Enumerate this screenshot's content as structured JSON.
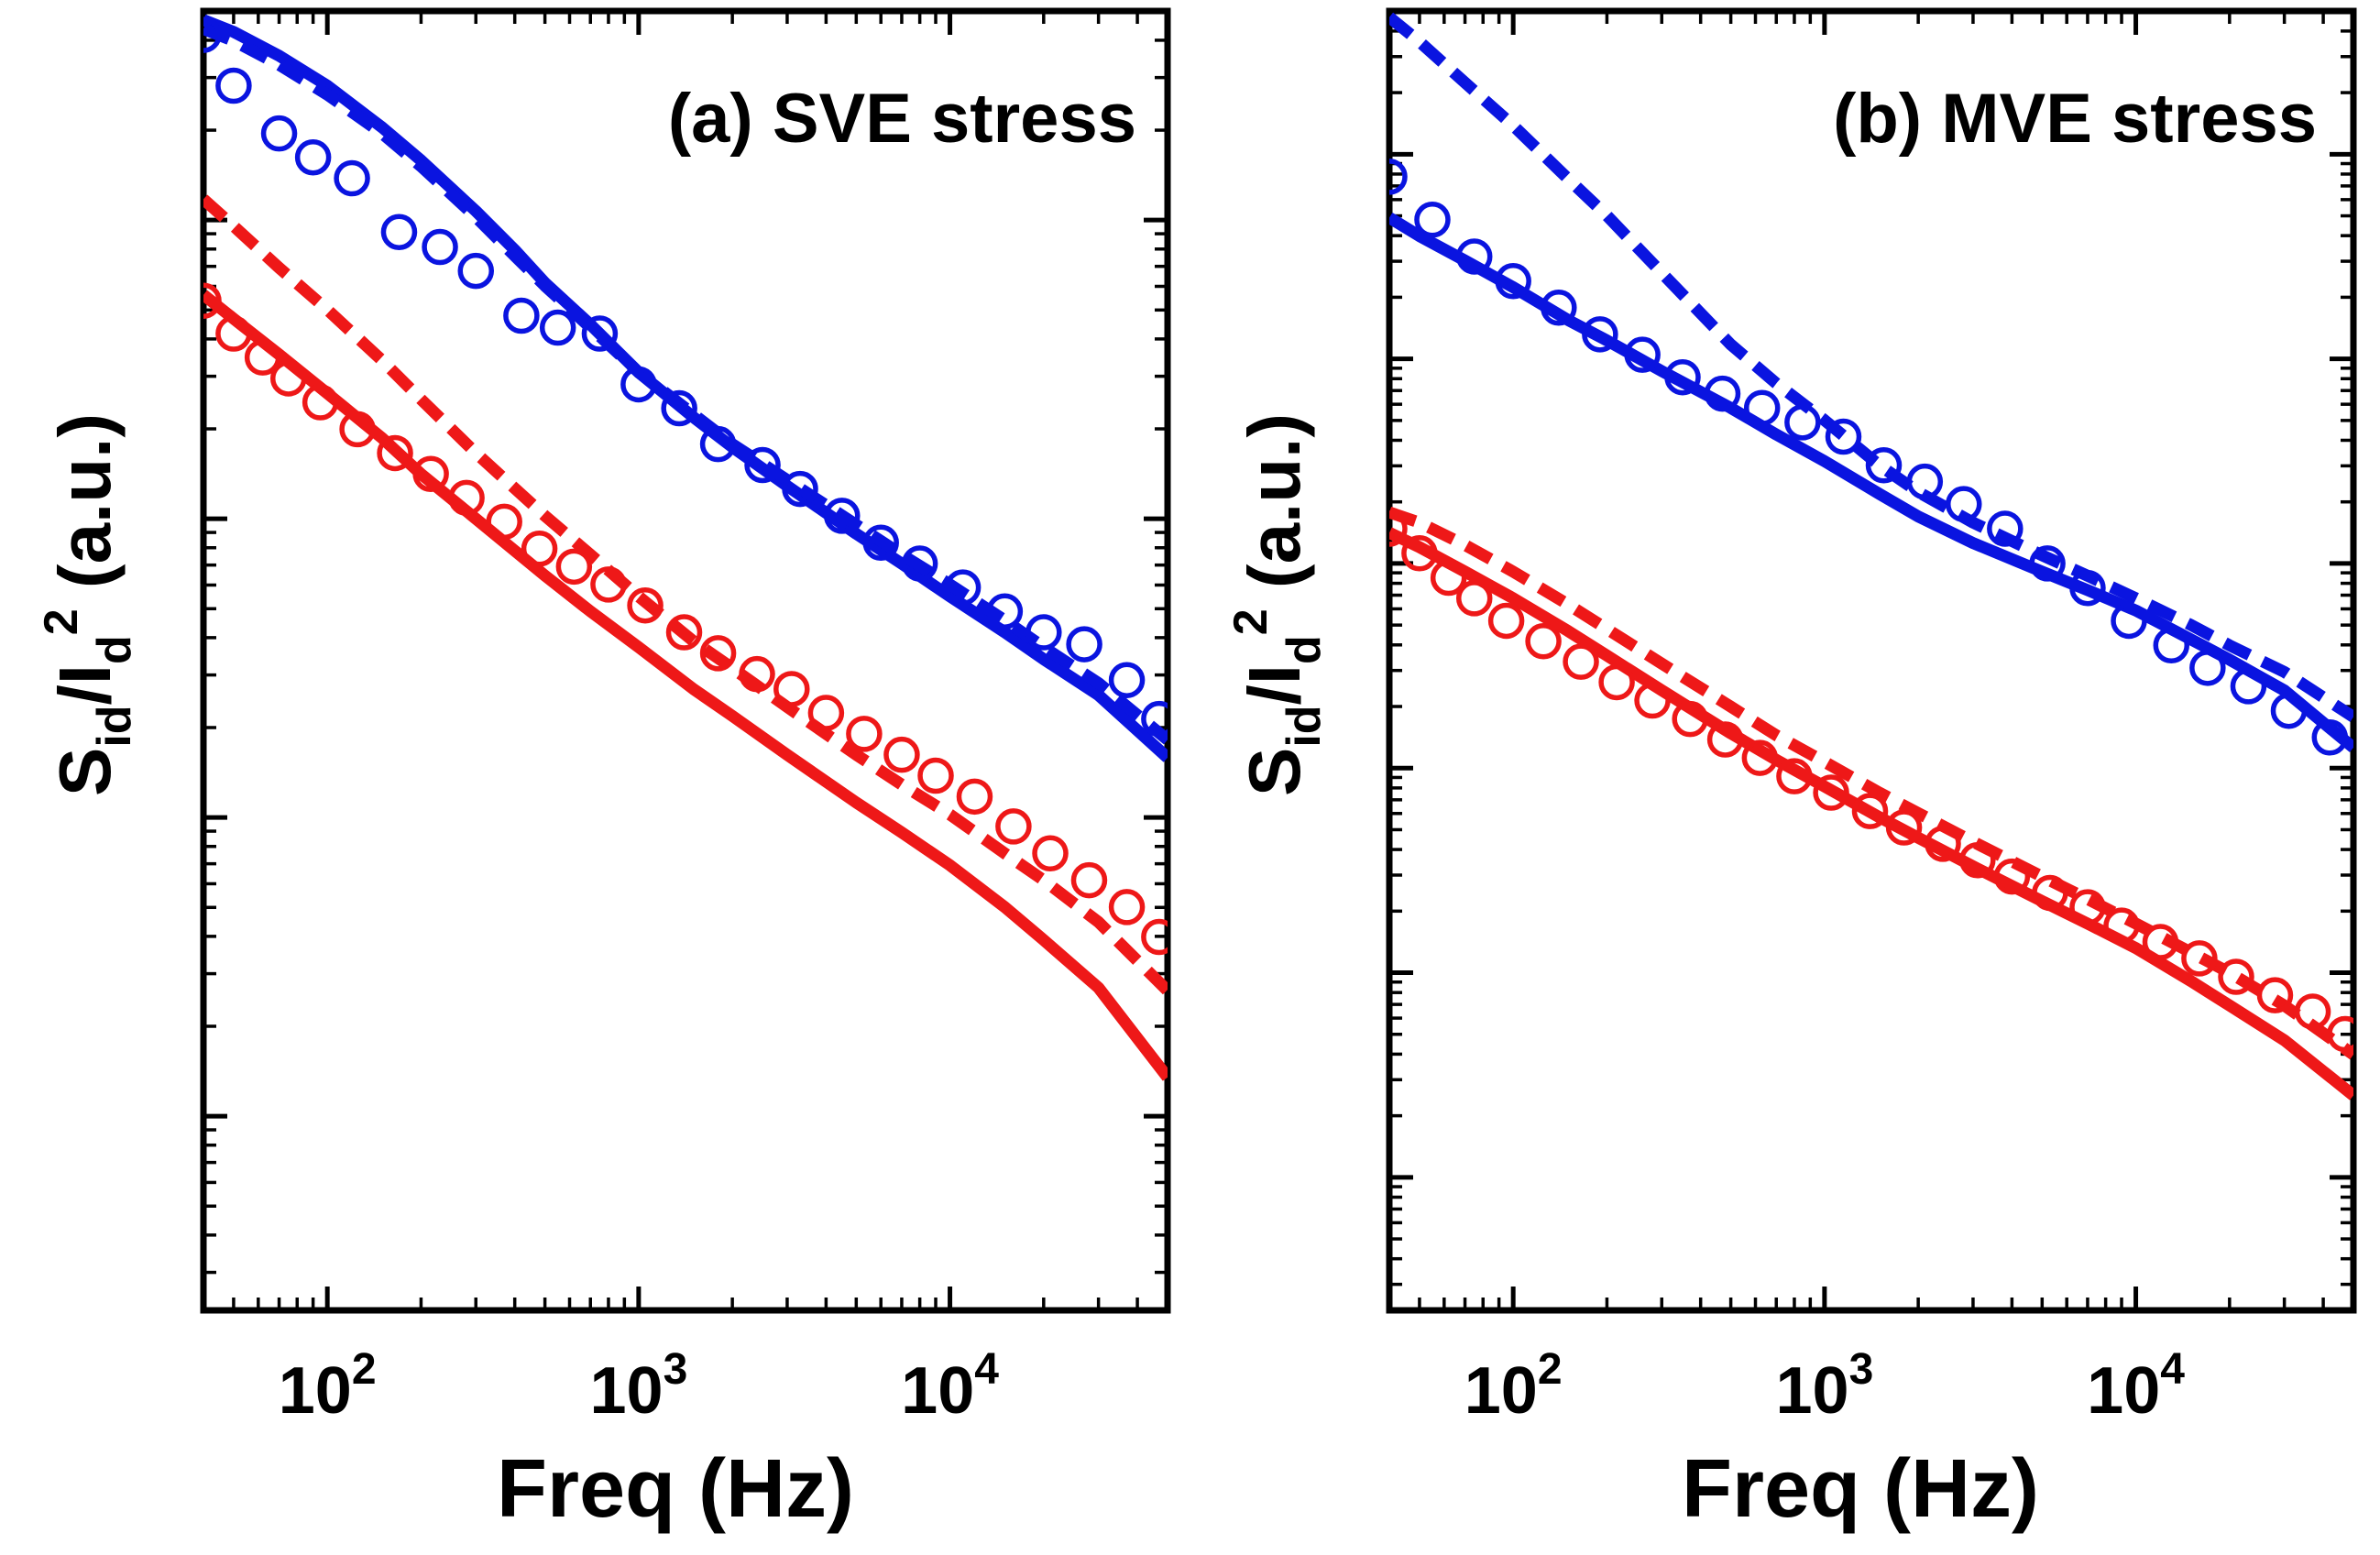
{
  "chart_data": [
    {
      "type": "line",
      "title": "(a) SVE stress",
      "xlabel": "Freq (Hz)",
      "ylabel": {
        "base": "S",
        "base_sub": "id",
        "sep": "/I",
        "sep_sub": "d",
        "sup": "2",
        "tail": " (a.u.)"
      },
      "x_scale": "log",
      "y_scale": "log",
      "xlim": [
        40,
        50000
      ],
      "ylim": [
        -11.65,
        -7.3
      ],
      "y_units": "log10 of arbitrary units (no tick labels shown)",
      "x_ticks": [
        {
          "value": 100,
          "base": "10",
          "exp": "2"
        },
        {
          "value": 1000,
          "base": "10",
          "exp": "3"
        },
        {
          "value": 10000,
          "base": "10",
          "exp": "4"
        }
      ],
      "series": [
        {
          "name": "blue-fit-solid",
          "color": "#0a14e0",
          "style": "solid",
          "x": [
            40,
            50,
            70,
            100,
            150,
            200,
            300,
            400,
            500,
            700,
            1000,
            1500,
            2000,
            3000,
            5000,
            7000,
            10000,
            15000,
            20000,
            30000,
            50000
          ],
          "y": [
            -7.33,
            -7.37,
            -7.45,
            -7.55,
            -7.69,
            -7.8,
            -7.97,
            -8.1,
            -8.21,
            -8.35,
            -8.51,
            -8.66,
            -8.76,
            -8.89,
            -9.05,
            -9.15,
            -9.26,
            -9.38,
            -9.47,
            -9.59,
            -9.8
          ]
        },
        {
          "name": "blue-fit-dashed",
          "color": "#0a14e0",
          "style": "dashed",
          "x": [
            40,
            50,
            70,
            100,
            150,
            200,
            300,
            400,
            500,
            700,
            1000,
            1500,
            2000,
            3000,
            5000,
            7000,
            10000,
            15000,
            20000,
            30000,
            50000
          ],
          "y": [
            -7.36,
            -7.4,
            -7.48,
            -7.58,
            -7.71,
            -7.82,
            -7.99,
            -8.12,
            -8.22,
            -8.36,
            -8.51,
            -8.65,
            -8.75,
            -8.87,
            -9.02,
            -9.12,
            -9.22,
            -9.34,
            -9.43,
            -9.55,
            -9.74
          ]
        },
        {
          "name": "blue-measured",
          "color": "#0a14e0",
          "style": "markers",
          "x": [
            40,
            50,
            70,
            90,
            120,
            170,
            230,
            300,
            420,
            550,
            750,
            1000,
            1350,
            1800,
            2500,
            3300,
            4500,
            6000,
            8000,
            11000,
            15000,
            20000,
            27000,
            37000,
            47000
          ],
          "y": [
            -7.38,
            -7.55,
            -7.71,
            -7.79,
            -7.86,
            -8.04,
            -8.09,
            -8.17,
            -8.32,
            -8.36,
            -8.38,
            -8.55,
            -8.63,
            -8.75,
            -8.82,
            -8.9,
            -8.99,
            -9.08,
            -9.15,
            -9.23,
            -9.31,
            -9.38,
            -9.42,
            -9.54,
            -9.67
          ]
        },
        {
          "name": "red-fit-solid",
          "color": "#ee1818",
          "style": "solid",
          "x": [
            40,
            50,
            70,
            100,
            150,
            200,
            300,
            500,
            700,
            1000,
            1500,
            2000,
            3000,
            5000,
            7000,
            10000,
            15000,
            20000,
            30000,
            50000
          ],
          "y": [
            -8.25,
            -8.33,
            -8.45,
            -8.58,
            -8.73,
            -8.85,
            -9.0,
            -9.19,
            -9.31,
            -9.43,
            -9.57,
            -9.66,
            -9.79,
            -9.95,
            -10.05,
            -10.16,
            -10.3,
            -10.41,
            -10.57,
            -10.87
          ]
        },
        {
          "name": "red-fit-dashed",
          "color": "#ee1818",
          "style": "dashed",
          "x": [
            40,
            50,
            70,
            100,
            150,
            200,
            300,
            500,
            700,
            1000,
            1500,
            2000,
            3000,
            5000,
            7000,
            10000,
            15000,
            20000,
            30000,
            50000
          ],
          "y": [
            -7.93,
            -8.02,
            -8.16,
            -8.3,
            -8.47,
            -8.6,
            -8.78,
            -8.99,
            -9.12,
            -9.26,
            -9.41,
            -9.5,
            -9.63,
            -9.79,
            -9.89,
            -9.99,
            -10.12,
            -10.21,
            -10.35,
            -10.58
          ]
        },
        {
          "name": "red-measured",
          "color": "#ee1818",
          "style": "markers",
          "x": [
            40,
            50,
            62,
            75,
            95,
            125,
            165,
            215,
            280,
            370,
            480,
            620,
            800,
            1050,
            1400,
            1800,
            2400,
            3100,
            4000,
            5300,
            7000,
            9000,
            12000,
            16000,
            21000,
            28000,
            37000,
            47000
          ],
          "y": [
            -8.27,
            -8.38,
            -8.46,
            -8.53,
            -8.61,
            -8.7,
            -8.78,
            -8.85,
            -8.93,
            -9.01,
            -9.1,
            -9.16,
            -9.22,
            -9.29,
            -9.38,
            -9.45,
            -9.52,
            -9.57,
            -9.65,
            -9.72,
            -9.79,
            -9.86,
            -9.93,
            -10.03,
            -10.12,
            -10.21,
            -10.3,
            -10.4
          ]
        }
      ]
    },
    {
      "type": "line",
      "title": "(b) MVE stress",
      "xlabel": "Freq (Hz)",
      "ylabel": {
        "base": "S",
        "base_sub": "id",
        "sep": "/I",
        "sep_sub": "d",
        "sup": "2",
        "tail": " (a.u.)"
      },
      "x_scale": "log",
      "y_scale": "log",
      "xlim": [
        40,
        50000
      ],
      "ylim": [
        -11.65,
        -5.3
      ],
      "y_units": "log10 of arbitrary units (no tick labels shown)",
      "x_ticks": [
        {
          "value": 100,
          "base": "10",
          "exp": "2"
        },
        {
          "value": 1000,
          "base": "10",
          "exp": "3"
        },
        {
          "value": 10000,
          "base": "10",
          "exp": "4"
        }
      ],
      "series": [
        {
          "name": "blue-fit-dashed",
          "color": "#0a14e0",
          "style": "dashed",
          "x": [
            40,
            50,
            70,
            100,
            150,
            200,
            300,
            500,
            700,
            1000,
            1500,
            2000,
            3000,
            5000,
            7000,
            10000,
            15000,
            20000,
            30000,
            50000
          ],
          "y": [
            -5.33,
            -5.45,
            -5.65,
            -5.86,
            -6.12,
            -6.3,
            -6.58,
            -6.93,
            -7.12,
            -7.3,
            -7.52,
            -7.65,
            -7.8,
            -7.96,
            -8.06,
            -8.17,
            -8.3,
            -8.4,
            -8.53,
            -8.75
          ]
        },
        {
          "name": "blue-fit-solid",
          "color": "#0a14e0",
          "style": "solid",
          "x": [
            40,
            50,
            70,
            100,
            150,
            200,
            300,
            500,
            700,
            1000,
            1500,
            2000,
            3000,
            5000,
            7000,
            10000,
            15000,
            20000,
            30000,
            50000
          ],
          "y": [
            -6.31,
            -6.4,
            -6.52,
            -6.65,
            -6.81,
            -6.91,
            -7.06,
            -7.24,
            -7.37,
            -7.5,
            -7.66,
            -7.77,
            -7.9,
            -8.04,
            -8.13,
            -8.23,
            -8.37,
            -8.47,
            -8.62,
            -8.9
          ]
        },
        {
          "name": "blue-measured",
          "color": "#0a14e0",
          "style": "markers",
          "x": [
            40,
            55,
            75,
            100,
            140,
            190,
            260,
            350,
            470,
            630,
            850,
            1150,
            1550,
            2100,
            2800,
            3800,
            5200,
            7000,
            9500,
            13000,
            17000,
            23000,
            31000,
            42000
          ],
          "y": [
            -6.11,
            -6.32,
            -6.5,
            -6.62,
            -6.75,
            -6.88,
            -6.98,
            -7.09,
            -7.17,
            -7.24,
            -7.31,
            -7.38,
            -7.52,
            -7.6,
            -7.71,
            -7.83,
            -8.0,
            -8.12,
            -8.28,
            -8.4,
            -8.51,
            -8.6,
            -8.72,
            -8.85
          ]
        },
        {
          "name": "red-fit-dashed",
          "color": "#ee1818",
          "style": "dashed",
          "x": [
            40,
            50,
            70,
            100,
            150,
            200,
            300,
            500,
            700,
            1000,
            1500,
            2000,
            3000,
            5000,
            7000,
            10000,
            15000,
            20000,
            30000,
            50000
          ],
          "y": [
            -7.75,
            -7.8,
            -7.91,
            -8.04,
            -8.2,
            -8.32,
            -8.49,
            -8.7,
            -8.84,
            -8.97,
            -9.12,
            -9.22,
            -9.36,
            -9.53,
            -9.64,
            -9.76,
            -9.9,
            -10.0,
            -10.16,
            -10.4
          ]
        },
        {
          "name": "red-fit-solid",
          "color": "#ee1818",
          "style": "solid",
          "x": [
            40,
            50,
            70,
            100,
            150,
            200,
            300,
            500,
            700,
            1000,
            1500,
            2000,
            3000,
            5000,
            7000,
            10000,
            15000,
            20000,
            30000,
            50000
          ],
          "y": [
            -7.85,
            -7.92,
            -8.04,
            -8.17,
            -8.33,
            -8.45,
            -8.62,
            -8.83,
            -8.96,
            -9.09,
            -9.24,
            -9.34,
            -9.48,
            -9.65,
            -9.76,
            -9.88,
            -10.04,
            -10.16,
            -10.33,
            -10.6
          ]
        },
        {
          "name": "red-measured",
          "color": "#ee1818",
          "style": "markers",
          "x": [
            40,
            50,
            62,
            75,
            95,
            125,
            165,
            215,
            280,
            370,
            480,
            620,
            800,
            1050,
            1400,
            1800,
            2400,
            3100,
            4000,
            5300,
            7000,
            9000,
            12000,
            16000,
            21000,
            28000,
            37000,
            47000
          ],
          "y": [
            -7.83,
            -7.95,
            -8.07,
            -8.17,
            -8.28,
            -8.38,
            -8.48,
            -8.58,
            -8.67,
            -8.76,
            -8.86,
            -8.95,
            -9.04,
            -9.12,
            -9.21,
            -9.29,
            -9.37,
            -9.45,
            -9.53,
            -9.61,
            -9.68,
            -9.77,
            -9.85,
            -9.93,
            -10.02,
            -10.11,
            -10.19,
            -10.3
          ]
        }
      ]
    }
  ]
}
